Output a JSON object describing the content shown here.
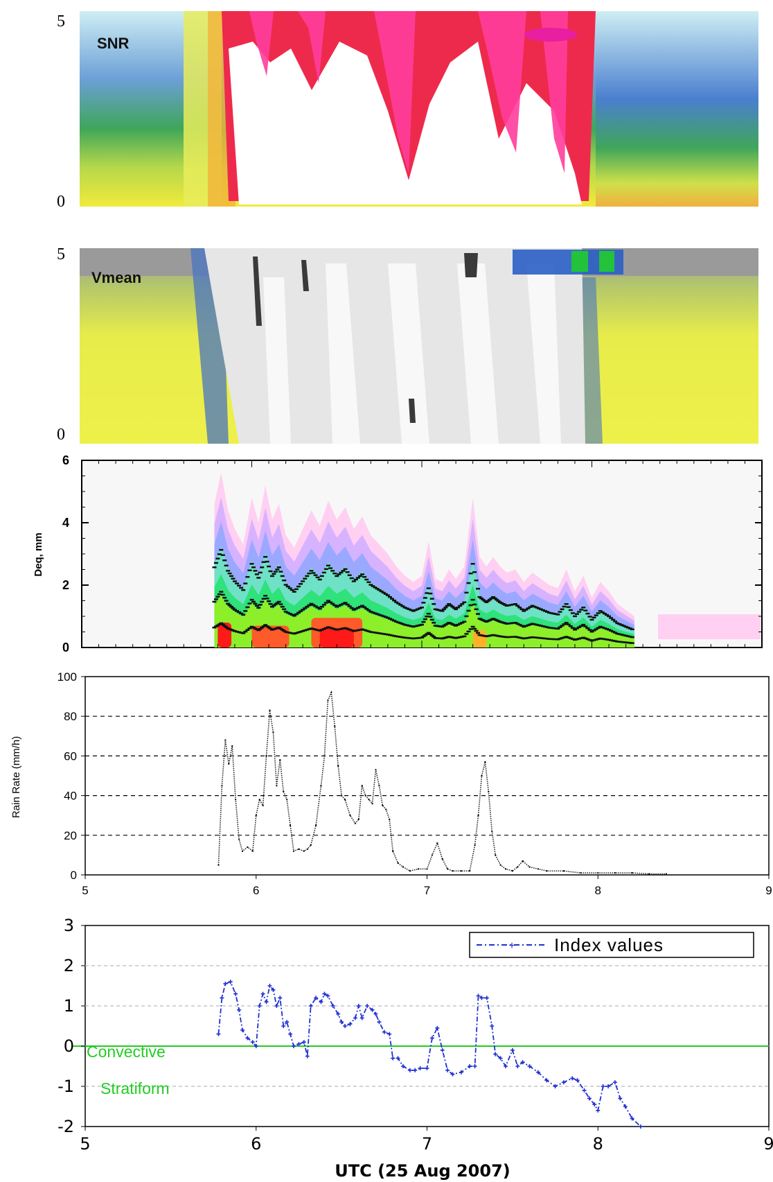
{
  "colors": {
    "axis": "#000000",
    "grid_dash": "#000000",
    "grid_light": "#bbbbbb",
    "rain_line": "#222222",
    "index_line": "#1f2fd0",
    "threshold_line": "#22cc22",
    "snr_scale": [
      "#cfeef4",
      "#9cd8e6",
      "#3a73c2",
      "#3fa65a",
      "#b6d84a",
      "#f2ea3c",
      "#f3b339",
      "#f0703a",
      "#ee2a4c",
      "#ff3d9c",
      "#ffffff"
    ],
    "vmean_scale": [
      "#9a9a9a",
      "#eef04a",
      "#cfe46a",
      "#4a74c2",
      "#2a2a2a",
      "#5a5a5a",
      "#bdbdbd",
      "#e6e6e6",
      "#f6f6f6",
      "#22c33a"
    ],
    "dsd_scale": [
      "#ffd0f2",
      "#d7b3ff",
      "#9aa9ff",
      "#6fe1c6",
      "#2fe27a",
      "#8cef2a",
      "#e8f02a",
      "#ffb02a",
      "#ff5a2a",
      "#ff1a1a"
    ]
  },
  "chart_data": [
    {
      "type": "heatmap",
      "label": "SNR",
      "ytick_labels": [
        "5",
        "0"
      ],
      "ylim": [
        0,
        5
      ],
      "xlim": [
        5,
        9
      ],
      "grid": false
    },
    {
      "type": "heatmap",
      "label": "Vmean",
      "ytick_labels": [
        "5",
        "0"
      ],
      "ylim": [
        0,
        5
      ],
      "xlim": [
        5,
        9
      ],
      "grid": false
    },
    {
      "type": "area",
      "ylabel": "Deq, mm",
      "ytick_labels": [
        "0",
        "2",
        "4",
        "6"
      ],
      "ylim": [
        0,
        6
      ],
      "xlim": [
        5,
        9
      ],
      "grid": false,
      "envelope": {
        "x": [
          5.78,
          5.82,
          5.86,
          5.9,
          5.95,
          6.0,
          6.04,
          6.08,
          6.12,
          6.16,
          6.2,
          6.25,
          6.3,
          6.35,
          6.4,
          6.45,
          6.5,
          6.55,
          6.6,
          6.65,
          6.7,
          6.75,
          6.8,
          6.85,
          6.9,
          6.95,
          7.0,
          7.04,
          7.08,
          7.12,
          7.16,
          7.2,
          7.25,
          7.3,
          7.34,
          7.38,
          7.42,
          7.46,
          7.5,
          7.55,
          7.6,
          7.65,
          7.7,
          7.75,
          7.8,
          7.85,
          7.9,
          7.95,
          8.0,
          8.05,
          8.1,
          8.15,
          8.2,
          8.25
        ],
        "y": [
          4.6,
          5.6,
          4.4,
          3.8,
          3.3,
          4.8,
          4.0,
          5.2,
          4.1,
          4.6,
          3.6,
          3.2,
          3.8,
          4.4,
          3.9,
          4.7,
          4.1,
          4.5,
          3.8,
          4.2,
          3.6,
          3.3,
          3.0,
          2.6,
          2.3,
          2.1,
          2.3,
          3.4,
          2.2,
          2.1,
          2.5,
          2.2,
          2.6,
          4.8,
          2.9,
          2.6,
          2.9,
          2.6,
          2.4,
          2.5,
          2.1,
          2.4,
          2.2,
          2.0,
          1.9,
          2.5,
          1.8,
          2.3,
          1.6,
          2.1,
          1.8,
          1.4,
          1.2,
          1.0
        ]
      }
    },
    {
      "type": "line",
      "ylabel": "Rain Rate (mm/h)",
      "xticks": [
        5,
        6,
        7,
        8,
        9
      ],
      "yticks": [
        0,
        20,
        40,
        60,
        80,
        100
      ],
      "xlim": [
        5,
        9
      ],
      "ylim": [
        0,
        100
      ],
      "grid": true,
      "series": [
        {
          "x": [
            5.78,
            5.8,
            5.82,
            5.84,
            5.86,
            5.88,
            5.9,
            5.92,
            5.95,
            5.98,
            6.0,
            6.02,
            6.04,
            6.06,
            6.08,
            6.1,
            6.12,
            6.14,
            6.16,
            6.18,
            6.2,
            6.22,
            6.25,
            6.28,
            6.3,
            6.32,
            6.35,
            6.38,
            6.4,
            6.42,
            6.44,
            6.46,
            6.48,
            6.5,
            6.52,
            6.55,
            6.58,
            6.6,
            6.62,
            6.64,
            6.66,
            6.68,
            6.7,
            6.72,
            6.74,
            6.76,
            6.78,
            6.8,
            6.83,
            6.86,
            6.9,
            6.95,
            7.0,
            7.03,
            7.06,
            7.09,
            7.12,
            7.15,
            7.2,
            7.25,
            7.28,
            7.3,
            7.32,
            7.34,
            7.36,
            7.38,
            7.4,
            7.43,
            7.46,
            7.5,
            7.53,
            7.56,
            7.6,
            7.65,
            7.7,
            7.8,
            7.9,
            8.0,
            8.1,
            8.2,
            8.3,
            8.4
          ],
          "y": [
            5,
            45,
            68,
            56,
            65,
            38,
            18,
            12,
            14,
            12,
            30,
            38,
            35,
            60,
            83,
            72,
            45,
            58,
            42,
            38,
            25,
            12,
            13,
            12,
            13,
            15,
            25,
            45,
            60,
            88,
            92,
            75,
            55,
            40,
            38,
            30,
            26,
            28,
            45,
            40,
            38,
            36,
            53,
            45,
            35,
            33,
            28,
            12,
            6,
            4,
            2,
            3,
            3,
            10,
            16,
            8,
            3,
            2,
            2,
            2,
            15,
            30,
            50,
            57,
            42,
            22,
            10,
            5,
            3,
            2,
            4,
            7,
            4,
            3,
            2,
            2,
            1,
            1,
            1,
            1,
            0.5,
            0.5
          ]
        }
      ]
    },
    {
      "type": "line",
      "xlabel": "UTC (25 Aug 2007)",
      "xticks": [
        5,
        6,
        7,
        8,
        9
      ],
      "yticks": [
        -2,
        -1,
        0,
        1,
        2,
        3
      ],
      "xlim": [
        5,
        9
      ],
      "ylim": [
        -2,
        3
      ],
      "grid": true,
      "legend": "top-right",
      "series": [
        {
          "name": "Index values",
          "x": [
            5.78,
            5.8,
            5.82,
            5.85,
            5.88,
            5.9,
            5.92,
            5.95,
            5.98,
            6.0,
            6.02,
            6.04,
            6.06,
            6.08,
            6.1,
            6.12,
            6.14,
            6.16,
            6.18,
            6.2,
            6.22,
            6.25,
            6.28,
            6.3,
            6.32,
            6.35,
            6.38,
            6.4,
            6.42,
            6.45,
            6.48,
            6.5,
            6.52,
            6.55,
            6.58,
            6.6,
            6.62,
            6.65,
            6.68,
            6.7,
            6.72,
            6.75,
            6.78,
            6.8,
            6.83,
            6.86,
            6.9,
            6.93,
            6.96,
            7.0,
            7.03,
            7.06,
            7.09,
            7.12,
            7.15,
            7.2,
            7.25,
            7.28,
            7.3,
            7.32,
            7.35,
            7.38,
            7.4,
            7.43,
            7.46,
            7.5,
            7.53,
            7.56,
            7.6,
            7.65,
            7.7,
            7.75,
            7.8,
            7.85,
            7.88,
            7.92,
            7.95,
            7.98,
            8.0,
            8.03,
            8.06,
            8.1,
            8.13,
            8.16,
            8.2,
            8.25
          ],
          "y": [
            0.3,
            1.2,
            1.55,
            1.6,
            1.3,
            0.9,
            0.4,
            0.2,
            0.1,
            0.0,
            1.0,
            1.3,
            1.1,
            1.5,
            1.4,
            1.0,
            1.2,
            0.5,
            0.6,
            0.3,
            0.0,
            0.05,
            0.1,
            -0.25,
            1.0,
            1.2,
            1.1,
            1.3,
            1.25,
            1.0,
            0.8,
            0.6,
            0.5,
            0.55,
            0.7,
            1.0,
            0.7,
            1.0,
            0.9,
            0.8,
            0.6,
            0.35,
            0.3,
            -0.3,
            -0.3,
            -0.5,
            -0.6,
            -0.6,
            -0.55,
            -0.55,
            0.2,
            0.45,
            -0.1,
            -0.6,
            -0.7,
            -0.65,
            -0.5,
            -0.5,
            1.25,
            1.2,
            1.2,
            0.5,
            -0.2,
            -0.3,
            -0.5,
            -0.1,
            -0.5,
            -0.4,
            -0.5,
            -0.65,
            -0.85,
            -1.0,
            -0.9,
            -0.8,
            -0.85,
            -1.1,
            -1.3,
            -1.45,
            -1.6,
            -1.0,
            -1.0,
            -0.9,
            -1.3,
            -1.5,
            -1.8,
            -2.0
          ]
        }
      ],
      "annotations": [
        "Convective",
        "Stratiform"
      ],
      "threshold": 0
    }
  ]
}
